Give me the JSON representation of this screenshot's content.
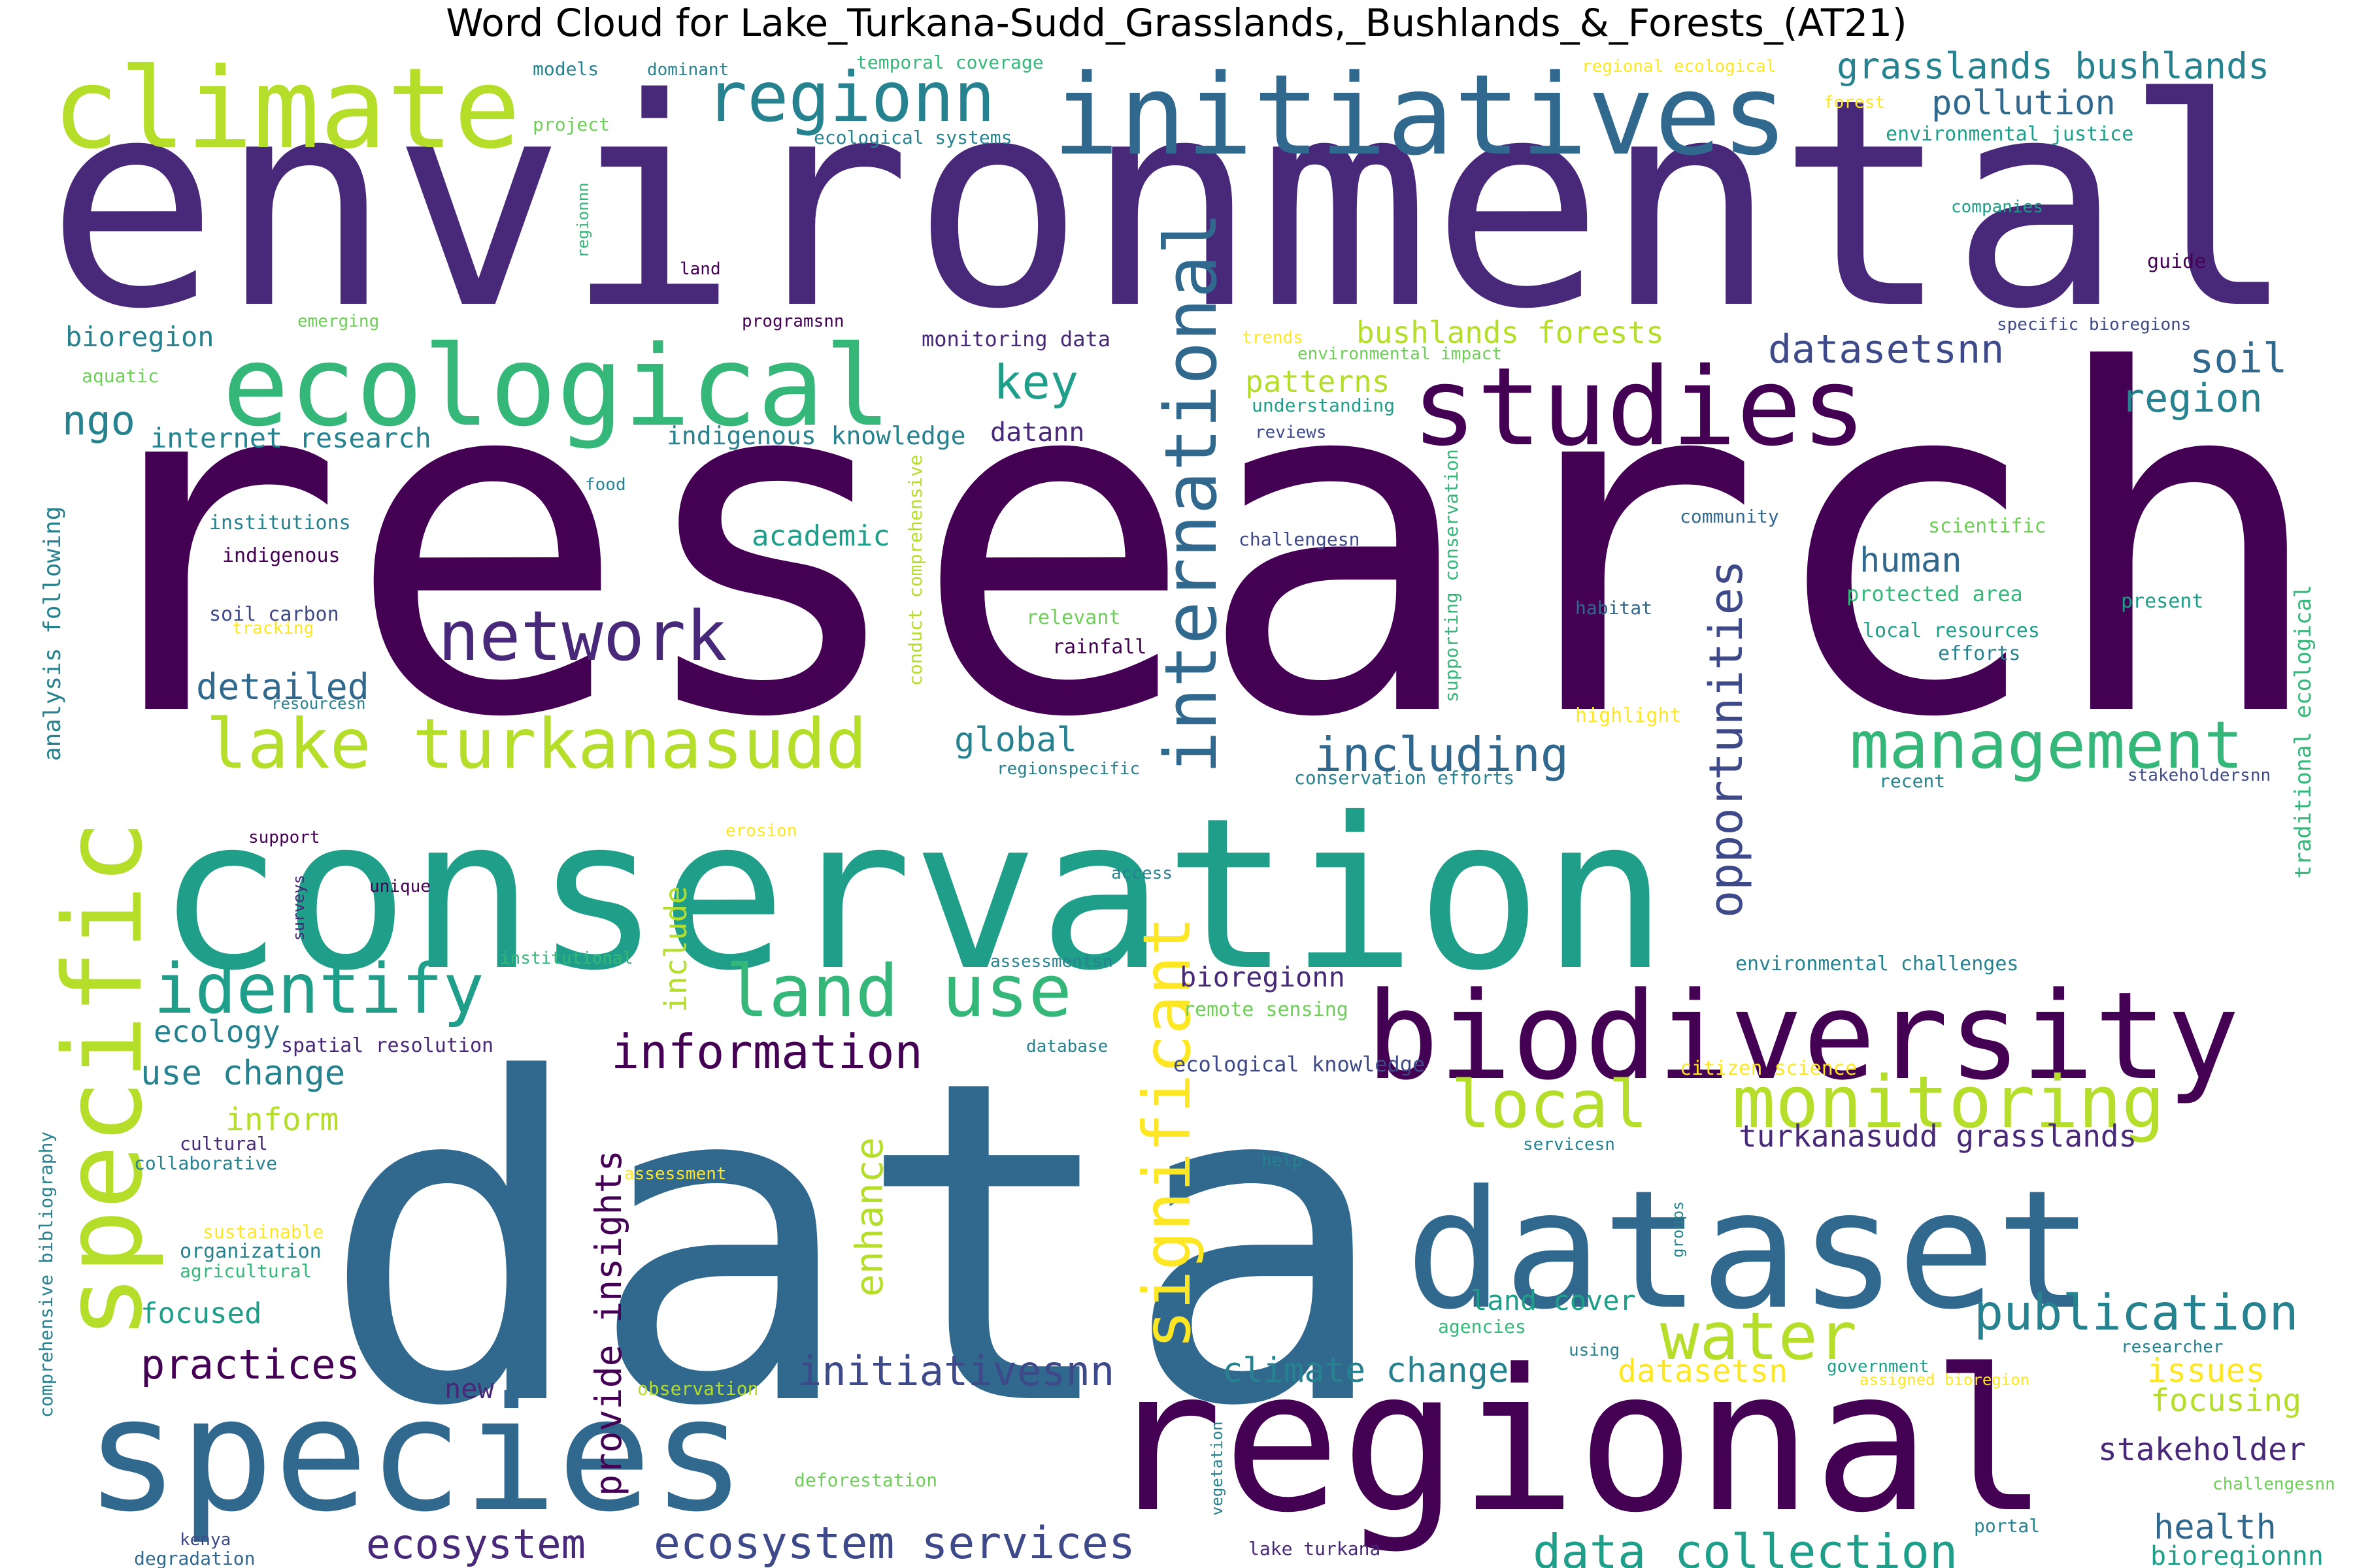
{
  "title": "Word Cloud for Lake_Turkana-Sudd_Grasslands,_Bushlands_&_Forests_(AT21)",
  "palette": {
    "c0": "#440154",
    "c1": "#482878",
    "c2": "#3e4989",
    "c3": "#31688e",
    "c4": "#26828e",
    "c5": "#1f9e89",
    "c6": "#35b779",
    "c7": "#6ece58",
    "c8": "#b5de2b",
    "c9": "#fde725"
  },
  "words": [
    {
      "text": "environmental",
      "color": "c1"
    },
    {
      "text": "research",
      "color": "c0"
    },
    {
      "text": "data",
      "color": "c3"
    },
    {
      "text": "conservation",
      "color": "c5"
    },
    {
      "text": "regional",
      "color": "c0"
    },
    {
      "text": "species",
      "color": "c3"
    },
    {
      "text": "dataset",
      "color": "c3"
    },
    {
      "text": "initiatives",
      "color": "c3"
    },
    {
      "text": "biodiversity",
      "color": "c0"
    },
    {
      "text": "climate",
      "color": "c8"
    },
    {
      "text": "ecological",
      "color": "c6"
    },
    {
      "text": "studies",
      "color": "c0"
    },
    {
      "text": "specific",
      "color": "c8"
    },
    {
      "text": "international",
      "color": "c3"
    },
    {
      "text": "significant",
      "color": "c9"
    },
    {
      "text": "regionn",
      "color": "c4"
    },
    {
      "text": "network",
      "color": "c1"
    },
    {
      "text": "lake turkanasudd",
      "color": "c8"
    },
    {
      "text": "management",
      "color": "c6"
    },
    {
      "text": "identify",
      "color": "c5"
    },
    {
      "text": "land use",
      "color": "c6"
    },
    {
      "text": "monitoring",
      "color": "c8"
    },
    {
      "text": "local",
      "color": "c8"
    },
    {
      "text": "water",
      "color": "c8"
    },
    {
      "text": "opportunities",
      "color": "c2"
    },
    {
      "text": "including",
      "color": "c3"
    },
    {
      "text": "information",
      "color": "c0"
    },
    {
      "text": "publication",
      "color": "c4"
    },
    {
      "text": "data collection",
      "color": "c5"
    },
    {
      "text": "ecosystem services",
      "color": "c2"
    },
    {
      "text": "ecosystem",
      "color": "c1"
    },
    {
      "text": "initiativesnn",
      "color": "c2"
    },
    {
      "text": "practices",
      "color": "c0"
    },
    {
      "text": "provide insights",
      "color": "c0"
    },
    {
      "text": "enhance",
      "color": "c8"
    },
    {
      "text": "key",
      "color": "c5"
    },
    {
      "text": "datasetsnn",
      "color": "c2"
    },
    {
      "text": "soil",
      "color": "c3"
    },
    {
      "text": "region",
      "color": "c4"
    },
    {
      "text": "grasslands bushlands",
      "color": "c4"
    },
    {
      "text": "pollution",
      "color": "c3"
    },
    {
      "text": "ngo",
      "color": "c4"
    },
    {
      "text": "detailed",
      "color": "c3"
    },
    {
      "text": "global",
      "color": "c4"
    },
    {
      "text": "human",
      "color": "c3"
    },
    {
      "text": "climate change",
      "color": "c4"
    },
    {
      "text": "health",
      "color": "c3"
    },
    {
      "text": "stakeholder",
      "color": "c1"
    },
    {
      "text": "issues",
      "color": "c9"
    },
    {
      "text": "focusing",
      "color": "c8"
    },
    {
      "text": "datasetsn",
      "color": "c9"
    },
    {
      "text": "turkanasudd grasslands",
      "color": "c1"
    },
    {
      "text": "bushlands forests",
      "color": "c8"
    },
    {
      "text": "patterns",
      "color": "c8"
    },
    {
      "text": "include",
      "color": "c8"
    },
    {
      "text": "use change",
      "color": "c4"
    },
    {
      "text": "inform",
      "color": "c8"
    },
    {
      "text": "ecology",
      "color": "c4"
    },
    {
      "text": "academic",
      "color": "c5"
    },
    {
      "text": "bioregion",
      "color": "c4"
    },
    {
      "text": "internet research",
      "color": "c4"
    },
    {
      "text": "indigenous knowledge",
      "color": "c4"
    },
    {
      "text": "datann",
      "color": "c1"
    },
    {
      "text": "focused",
      "color": "c5"
    },
    {
      "text": "new",
      "color": "c1"
    },
    {
      "text": "land cover",
      "color": "c5"
    },
    {
      "text": "bioregionnn",
      "color": "c5"
    },
    {
      "text": "bioregionn",
      "color": "c1"
    },
    {
      "text": "analysis following",
      "color": "c4"
    },
    {
      "text": "traditional ecological",
      "color": "c6"
    },
    {
      "text": "monitoring data",
      "color": "c1"
    },
    {
      "text": "ecological knowledge",
      "color": "c2"
    },
    {
      "text": "environmental challenges",
      "color": "c4"
    },
    {
      "text": "spatial resolution",
      "color": "c1"
    },
    {
      "text": "remote sensing",
      "color": "c7"
    },
    {
      "text": "comprehensive bibliography",
      "color": "c4"
    },
    {
      "text": "organization",
      "color": "c4"
    },
    {
      "text": "conservation efforts",
      "color": "c4"
    },
    {
      "text": "regionspecific",
      "color": "c4"
    },
    {
      "text": "stakeholdersnn",
      "color": "c2"
    },
    {
      "text": "recent",
      "color": "c4"
    },
    {
      "text": "protected area",
      "color": "c6"
    },
    {
      "text": "local resources",
      "color": "c5"
    },
    {
      "text": "efforts",
      "color": "c4"
    },
    {
      "text": "present",
      "color": "c5"
    },
    {
      "text": "community",
      "color": "c3"
    },
    {
      "text": "scientific",
      "color": "c7"
    },
    {
      "text": "habitat",
      "color": "c3"
    },
    {
      "text": "highlight",
      "color": "c9"
    },
    {
      "text": "supporting conservation",
      "color": "c6"
    },
    {
      "text": "conduct comprehensive",
      "color": "c8"
    },
    {
      "text": "relevant",
      "color": "c7"
    },
    {
      "text": "rainfall",
      "color": "c0"
    },
    {
      "text": "challengesn",
      "color": "c2"
    },
    {
      "text": "institutions",
      "color": "c4"
    },
    {
      "text": "indigenous",
      "color": "c0"
    },
    {
      "text": "soil carbon",
      "color": "c2"
    },
    {
      "text": "tracking",
      "color": "c9"
    },
    {
      "text": "resourcesn",
      "color": "c4"
    },
    {
      "text": "food",
      "color": "c4"
    },
    {
      "text": "aquatic",
      "color": "c7"
    },
    {
      "text": "emerging",
      "color": "c7"
    },
    {
      "text": "programsnn",
      "color": "c0"
    },
    {
      "text": "trends",
      "color": "c9"
    },
    {
      "text": "environmental impact",
      "color": "c7"
    },
    {
      "text": "understanding",
      "color": "c5"
    },
    {
      "text": "reviews",
      "color": "c2"
    },
    {
      "text": "specific bioregions",
      "color": "c2"
    },
    {
      "text": "guide",
      "color": "c0"
    },
    {
      "text": "companies",
      "color": "c5"
    },
    {
      "text": "environmental justice",
      "color": "c5"
    },
    {
      "text": "forest",
      "color": "c9"
    },
    {
      "text": "regional ecological",
      "color": "c9"
    },
    {
      "text": "temporal coverage",
      "color": "c6"
    },
    {
      "text": "models",
      "color": "c4"
    },
    {
      "text": "dominant",
      "color": "c4"
    },
    {
      "text": "project",
      "color": "c7"
    },
    {
      "text": "ecological systems",
      "color": "c4"
    },
    {
      "text": "land",
      "color": "c0"
    },
    {
      "text": "regionnn",
      "color": "c6"
    },
    {
      "text": "support",
      "color": "c0"
    },
    {
      "text": "unique",
      "color": "c0"
    },
    {
      "text": "surveys",
      "color": "c1"
    },
    {
      "text": "erosion",
      "color": "c9"
    },
    {
      "text": "access",
      "color": "c4"
    },
    {
      "text": "institutional",
      "color": "c6"
    },
    {
      "text": "assessmentsn",
      "color": "c4"
    },
    {
      "text": "database",
      "color": "c4"
    },
    {
      "text": "cultural",
      "color": "c1"
    },
    {
      "text": "collaborative",
      "color": "c4"
    },
    {
      "text": "assessment",
      "color": "c9"
    },
    {
      "text": "sustainable",
      "color": "c9"
    },
    {
      "text": "agricultural",
      "color": "c6"
    },
    {
      "text": "citizen science",
      "color": "c9"
    },
    {
      "text": "servicesn",
      "color": "c4"
    },
    {
      "text": "help",
      "color": "c4"
    },
    {
      "text": "groups",
      "color": "c4"
    },
    {
      "text": "agencies",
      "color": "c6"
    },
    {
      "text": "using",
      "color": "c4"
    },
    {
      "text": "government",
      "color": "c5"
    },
    {
      "text": "assigned bioregion",
      "color": "c9"
    },
    {
      "text": "researcher",
      "color": "c4"
    },
    {
      "text": "observation",
      "color": "c8"
    },
    {
      "text": "deforestation",
      "color": "c7"
    },
    {
      "text": "vegetation",
      "color": "c4"
    },
    {
      "text": "lake turkana",
      "color": "c1"
    },
    {
      "text": "portal",
      "color": "c4"
    },
    {
      "text": "challengesnn",
      "color": "c7"
    },
    {
      "text": "kenya",
      "color": "c2"
    },
    {
      "text": "degradation",
      "color": "c3"
    }
  ]
}
